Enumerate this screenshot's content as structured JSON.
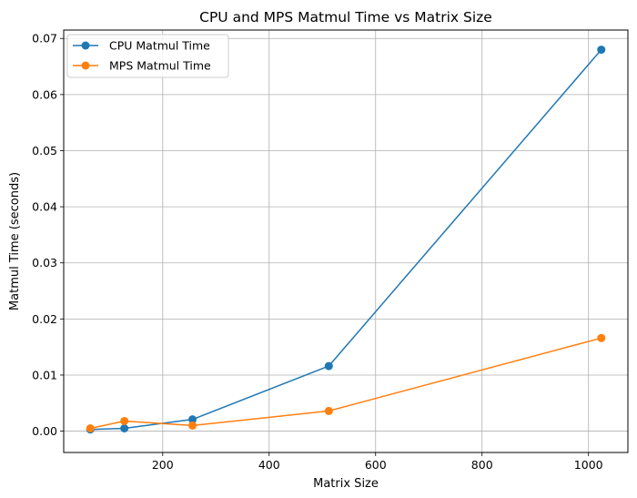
{
  "chart_data": {
    "type": "line",
    "title": "CPU and MPS Matmul Time vs Matrix Size",
    "xlabel": "Matrix Size",
    "ylabel": "Matmul Time (seconds)",
    "x": [
      64,
      128,
      256,
      512,
      1024
    ],
    "xlim": [
      14,
      1074
    ],
    "ylim": [
      -0.0038,
      0.0715
    ],
    "xticks": [
      200,
      400,
      600,
      800,
      1000
    ],
    "xtick_labels": [
      "200",
      "400",
      "600",
      "800",
      "1000"
    ],
    "yticks": [
      0.0,
      0.01,
      0.02,
      0.03,
      0.04,
      0.05,
      0.06,
      0.07
    ],
    "ytick_labels": [
      "0.00",
      "0.01",
      "0.02",
      "0.03",
      "0.04",
      "0.05",
      "0.06",
      "0.07"
    ],
    "grid": true,
    "legend_position": "top-left",
    "series": [
      {
        "name": "CPU Matmul Time",
        "color": "#1f77b4",
        "values": [
          0.0003,
          0.0005,
          0.0021,
          0.0116,
          0.068
        ]
      },
      {
        "name": "MPS Matmul Time",
        "color": "#ff7f0e",
        "values": [
          0.0005,
          0.0018,
          0.001,
          0.0036,
          0.0166
        ]
      }
    ]
  }
}
